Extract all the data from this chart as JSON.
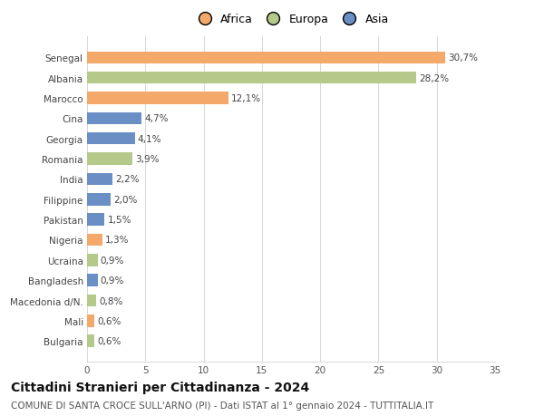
{
  "categories": [
    "Bulgaria",
    "Mali",
    "Macedonia d/N.",
    "Bangladesh",
    "Ucraina",
    "Nigeria",
    "Pakistan",
    "Filippine",
    "India",
    "Romania",
    "Georgia",
    "Cina",
    "Marocco",
    "Albania",
    "Senegal"
  ],
  "values": [
    0.6,
    0.6,
    0.8,
    0.9,
    0.9,
    1.3,
    1.5,
    2.0,
    2.2,
    3.9,
    4.1,
    4.7,
    12.1,
    28.2,
    30.7
  ],
  "labels": [
    "0,6%",
    "0,6%",
    "0,8%",
    "0,9%",
    "0,9%",
    "1,3%",
    "1,5%",
    "2,0%",
    "2,2%",
    "3,9%",
    "4,1%",
    "4,7%",
    "12,1%",
    "28,2%",
    "30,7%"
  ],
  "colors": [
    "#b5c98a",
    "#f4a86a",
    "#b5c98a",
    "#6a8fc4",
    "#b5c98a",
    "#f4a86a",
    "#6a8fc4",
    "#6a8fc4",
    "#6a8fc4",
    "#b5c98a",
    "#6a8fc4",
    "#6a8fc4",
    "#f4a86a",
    "#b5c98a",
    "#f4a86a"
  ],
  "continent_colors": {
    "Africa": "#f4a86a",
    "Europa": "#b5c98a",
    "Asia": "#6a8fc4"
  },
  "xlim": [
    0,
    35
  ],
  "xticks": [
    0,
    5,
    10,
    15,
    20,
    25,
    30,
    35
  ],
  "title": "Cittadini Stranieri per Cittadinanza - 2024",
  "subtitle": "COMUNE DI SANTA CROCE SULL'ARNO (PI) - Dati ISTAT al 1° gennaio 2024 - TUTTITALIA.IT",
  "background_color": "#ffffff",
  "grid_color": "#d8d8d8",
  "bar_height": 0.6,
  "label_fontsize": 7.5,
  "tick_fontsize": 7.5,
  "title_fontsize": 10,
  "subtitle_fontsize": 7.5
}
